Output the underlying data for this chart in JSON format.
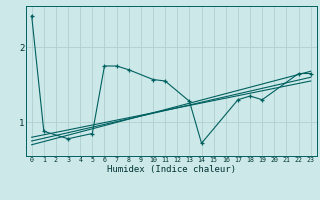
{
  "title": "",
  "xlabel": "Humidex (Indice chaleur)",
  "bg_color": "#cce8e8",
  "grid_color": "#b0d0d0",
  "line_color": "#006060",
  "x_ticks": [
    0,
    1,
    2,
    3,
    4,
    5,
    6,
    7,
    8,
    9,
    10,
    11,
    12,
    13,
    14,
    15,
    16,
    17,
    18,
    19,
    20,
    21,
    22,
    23
  ],
  "y_ticks": [
    1,
    2
  ],
  "ylim": [
    0.55,
    2.55
  ],
  "xlim": [
    -0.5,
    23.5
  ],
  "jagged_x": [
    0,
    1,
    3,
    5,
    6,
    7,
    8,
    10,
    11,
    13,
    14,
    17,
    18,
    19,
    22,
    23
  ],
  "jagged_y": [
    2.42,
    0.88,
    0.78,
    0.85,
    1.75,
    1.75,
    1.7,
    1.57,
    1.55,
    1.28,
    0.72,
    1.3,
    1.35,
    1.3,
    1.65,
    1.65
  ],
  "reg_lines": [
    {
      "x": [
        0,
        23
      ],
      "y": [
        0.7,
        1.68
      ]
    },
    {
      "x": [
        0,
        23
      ],
      "y": [
        0.75,
        1.6
      ]
    },
    {
      "x": [
        0,
        23
      ],
      "y": [
        0.8,
        1.55
      ]
    }
  ]
}
